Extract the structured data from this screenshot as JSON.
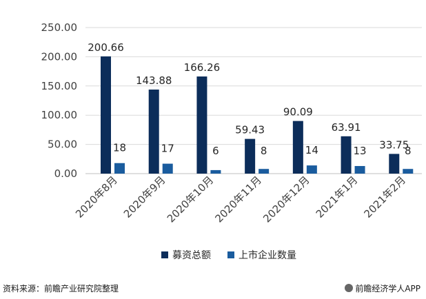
{
  "chart_data": {
    "type": "bar",
    "categories": [
      "2020年8月",
      "2020年9月",
      "2020年10月",
      "2020年11月",
      "2020年12月",
      "2021年1月",
      "2021年2月"
    ],
    "series": [
      {
        "name": "募资总额",
        "values": [
          200.66,
          143.88,
          166.26,
          59.43,
          90.09,
          63.91,
          33.75
        ],
        "labels": [
          "200.66",
          "143.88",
          "166.26",
          "59.43",
          "90.09",
          "63.91",
          "33.75"
        ],
        "color": "#0c2d5a"
      },
      {
        "name": "上市企业数量",
        "values": [
          18,
          17,
          6,
          8,
          14,
          13,
          8
        ],
        "labels": [
          "18",
          "17",
          "6",
          "8",
          "14",
          "13",
          "8"
        ],
        "color": "#1a5c9e"
      }
    ],
    "ylim": [
      0,
      250
    ],
    "yticks": [
      "0.00",
      "50.00",
      "100.00",
      "150.00",
      "200.00",
      "250.00"
    ],
    "ytick_values": [
      0,
      50,
      100,
      150,
      200,
      250
    ],
    "grid": true,
    "legend_position": "bottom"
  },
  "footer": {
    "source": "资料来源：前瞻产业研究院整理",
    "brand": "前瞻经济学人APP"
  }
}
